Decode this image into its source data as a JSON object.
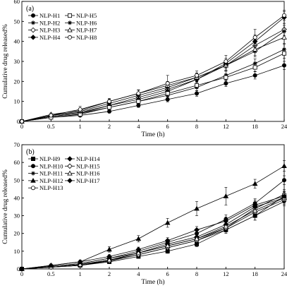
{
  "chart_data": [
    {
      "type": "line",
      "panel_label": "(a)",
      "xlabel": "Time (h)",
      "ylabel": "Cumulative drug released%",
      "categories": [
        "0",
        "0.5",
        "1",
        "2",
        "4",
        "6",
        "8",
        "12",
        "18",
        "24"
      ],
      "ylim": [
        0,
        60
      ],
      "yticks": [
        0,
        10,
        20,
        30,
        40,
        50,
        60
      ],
      "grid": false,
      "legend_position": "top-left",
      "legend_columns": 2,
      "series": [
        {
          "name": "NLP-H1",
          "marker": "circle-filled",
          "values": [
            0,
            2,
            3,
            5,
            8,
            11,
            14,
            19,
            23,
            28
          ],
          "errors": [
            0,
            0.5,
            0.6,
            0.8,
            1,
            1.2,
            1.4,
            1.6,
            1.8,
            2
          ]
        },
        {
          "name": "NLP-H2",
          "marker": "star",
          "values": [
            0,
            2.5,
            4,
            7,
            10,
            13,
            17,
            23,
            29,
            36
          ],
          "errors": [
            0,
            0.6,
            0.8,
            1,
            1.3,
            1.5,
            1.7,
            2,
            2.3,
            2.5
          ]
        },
        {
          "name": "NLP-H3",
          "marker": "diamond-open",
          "values": [
            0,
            3,
            4.5,
            8,
            12,
            16,
            21,
            28,
            38,
            46
          ],
          "errors": [
            0,
            0.6,
            0.8,
            1,
            1.4,
            1.8,
            2,
            2.4,
            3,
            3
          ]
        },
        {
          "name": "NLP-H4",
          "marker": "diamond-filled",
          "values": [
            0,
            2.5,
            4,
            8,
            11,
            15,
            21,
            29,
            40,
            52
          ],
          "errors": [
            0,
            0.6,
            0.8,
            1.1,
            1.4,
            1.8,
            2,
            2.5,
            3.2,
            3
          ]
        },
        {
          "name": "NLP-H5",
          "marker": "square-open",
          "values": [
            0,
            2,
            3.5,
            7,
            10,
            14,
            18,
            22,
            27,
            34
          ],
          "errors": [
            0,
            0.5,
            0.7,
            0.9,
            1.2,
            1.4,
            1.6,
            1.8,
            2,
            2.5
          ]
        },
        {
          "name": "NLP-H6",
          "marker": "star",
          "values": [
            0,
            3,
            5,
            9,
            13,
            17,
            22,
            28,
            35,
            45
          ],
          "errors": [
            0,
            0.6,
            0.8,
            1.1,
            1.5,
            1.8,
            2,
            2.4,
            2.8,
            3
          ]
        },
        {
          "name": "NLP-H7",
          "marker": "triangle-open",
          "values": [
            0,
            3.5,
            5.5,
            10,
            14,
            18,
            22,
            28,
            36,
            42
          ],
          "errors": [
            0,
            0.7,
            0.9,
            1.2,
            1.6,
            2,
            2.2,
            2.6,
            3,
            3
          ]
        },
        {
          "name": "NLP-H8",
          "marker": "circle-open",
          "values": [
            0,
            3,
            6,
            10,
            14,
            19,
            23,
            30,
            42,
            53
          ],
          "errors": [
            0,
            0.8,
            1.5,
            1.5,
            1.8,
            4,
            2.2,
            3,
            4,
            2.5
          ]
        }
      ]
    },
    {
      "type": "line",
      "panel_label": "(b)",
      "xlabel": "Time (h)",
      "ylabel": "Cumulative drug released%",
      "categories": [
        "0",
        "0.5",
        "1",
        "2",
        "4",
        "6",
        "8",
        "12",
        "18",
        "24"
      ],
      "ylim": [
        0,
        70
      ],
      "yticks": [
        0,
        10,
        20,
        30,
        40,
        50,
        60,
        70
      ],
      "grid": false,
      "legend_position": "top-left",
      "legend_columns": 2,
      "series": [
        {
          "name": "NLP-H9",
          "marker": "square-filled",
          "values": [
            0,
            1,
            2,
            4,
            7,
            10,
            14,
            22,
            30,
            41
          ],
          "errors": [
            0,
            0.4,
            0.5,
            0.8,
            1,
            1.2,
            1.5,
            2,
            2.5,
            2.5
          ]
        },
        {
          "name": "NLP-H10",
          "marker": "circle-filled",
          "values": [
            0,
            1.5,
            3,
            6,
            10,
            15,
            20,
            28,
            37,
            50
          ],
          "errors": [
            0,
            0.5,
            0.7,
            1,
            1.3,
            1.6,
            2,
            2.5,
            2.5,
            2.5
          ]
        },
        {
          "name": "NLP-H11",
          "marker": "star",
          "values": [
            0,
            1,
            2.5,
            5,
            8,
            12,
            16,
            22,
            30,
            38
          ],
          "errors": [
            0,
            0.4,
            0.6,
            0.8,
            1,
            1.3,
            1.6,
            2,
            2.5,
            2.5
          ]
        },
        {
          "name": "NLP-H12",
          "marker": "triangle-filled",
          "values": [
            0,
            2,
            4,
            11,
            17,
            26,
            34,
            41,
            48,
            58
          ],
          "errors": [
            0,
            0.8,
            1,
            1.5,
            1.8,
            2.5,
            4,
            5,
            2.5,
            3
          ]
        },
        {
          "name": "NLP-H13",
          "marker": "circle-open",
          "values": [
            0,
            1,
            2,
            5,
            9,
            13,
            17,
            23,
            34,
            42
          ],
          "errors": [
            0,
            0.4,
            0.6,
            0.8,
            1.1,
            1.4,
            1.7,
            2.2,
            2.6,
            2.8
          ]
        },
        {
          "name": "NLP-H14",
          "marker": "diamond-filled",
          "values": [
            0,
            1.5,
            3,
            6,
            9,
            14,
            18,
            25,
            35,
            40
          ],
          "errors": [
            0,
            0.5,
            0.7,
            0.9,
            1.2,
            1.5,
            1.8,
            2.2,
            2.6,
            2.8
          ]
        },
        {
          "name": "NLP-H15",
          "marker": "diamond-open",
          "values": [
            0,
            1,
            2,
            4.5,
            8,
            12,
            16,
            23,
            32,
            39
          ],
          "errors": [
            0,
            0.4,
            0.6,
            0.8,
            1,
            1.3,
            1.6,
            2,
            2.5,
            2.6
          ]
        },
        {
          "name": "NLP-H16",
          "marker": "triangle-open",
          "values": [
            0,
            1,
            2.5,
            5,
            9,
            13,
            17,
            24,
            33,
            40
          ],
          "errors": [
            0,
            0.4,
            0.6,
            0.8,
            1.1,
            1.4,
            1.7,
            2.1,
            2.5,
            2.7
          ]
        },
        {
          "name": "NLP-H17",
          "marker": "diamond-filled",
          "values": [
            0,
            2,
            4,
            7,
            11,
            16,
            22,
            27,
            36,
            41
          ],
          "errors": [
            0,
            0.5,
            0.8,
            1,
            1.3,
            1.6,
            1.9,
            2.3,
            2.7,
            2.8
          ]
        }
      ]
    }
  ]
}
